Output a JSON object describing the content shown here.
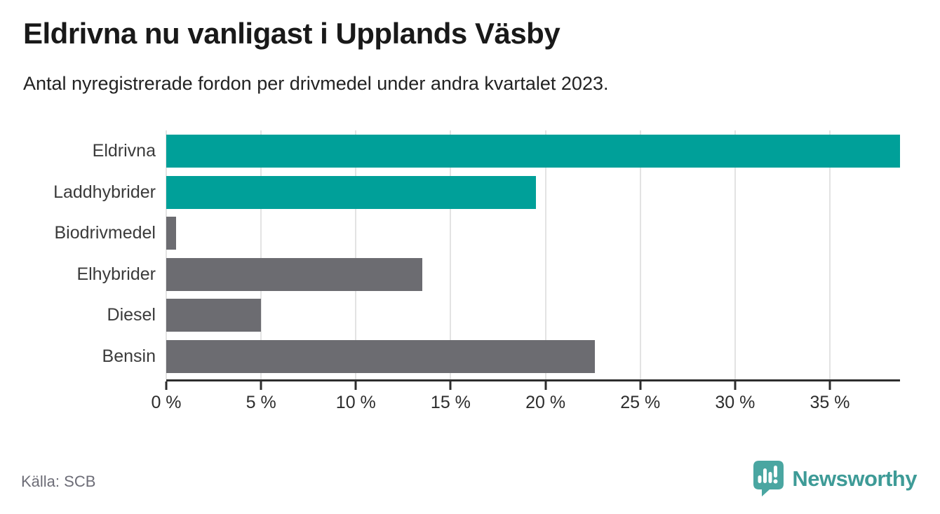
{
  "header": {
    "title": "Eldrivna nu vanligast i Upplands Väsby",
    "subtitle": "Antal nyregistrerade fordon per drivmedel under andra kvartalet 2023."
  },
  "chart_data": {
    "type": "bar",
    "orientation": "horizontal",
    "title": "Eldrivna nu vanligast i Upplands Väsby",
    "subtitle": "Antal nyregistrerade fordon per drivmedel under andra kvartalet 2023.",
    "categories": [
      "Eldrivna",
      "Laddhybrider",
      "Biodrivmedel",
      "Elhybrider",
      "Diesel",
      "Bensin"
    ],
    "values": [
      38.7,
      19.5,
      0.5,
      13.5,
      5.0,
      22.6
    ],
    "unit": "%",
    "colors": [
      "#00a099",
      "#00a099",
      "#6c6c71",
      "#6c6c71",
      "#6c6c71",
      "#6c6c71"
    ],
    "highlight_color": "#00a099",
    "default_color": "#6c6c71",
    "xlim": [
      0,
      38.7
    ],
    "x_ticks": [
      0,
      5,
      10,
      15,
      20,
      25,
      30,
      35
    ],
    "x_tick_labels": [
      "0 %",
      "5 %",
      "10 %",
      "15 %",
      "20 %",
      "25 %",
      "30 %",
      "35 %"
    ],
    "grid": "vertical",
    "gridline_color": "#e3e3e3",
    "legend": "none"
  },
  "footer": {
    "source": "Källa: SCB",
    "brand": "Newsworthy",
    "brand_text_color": "#3e9b97",
    "brand_icon_color": "#4aa6a1"
  }
}
